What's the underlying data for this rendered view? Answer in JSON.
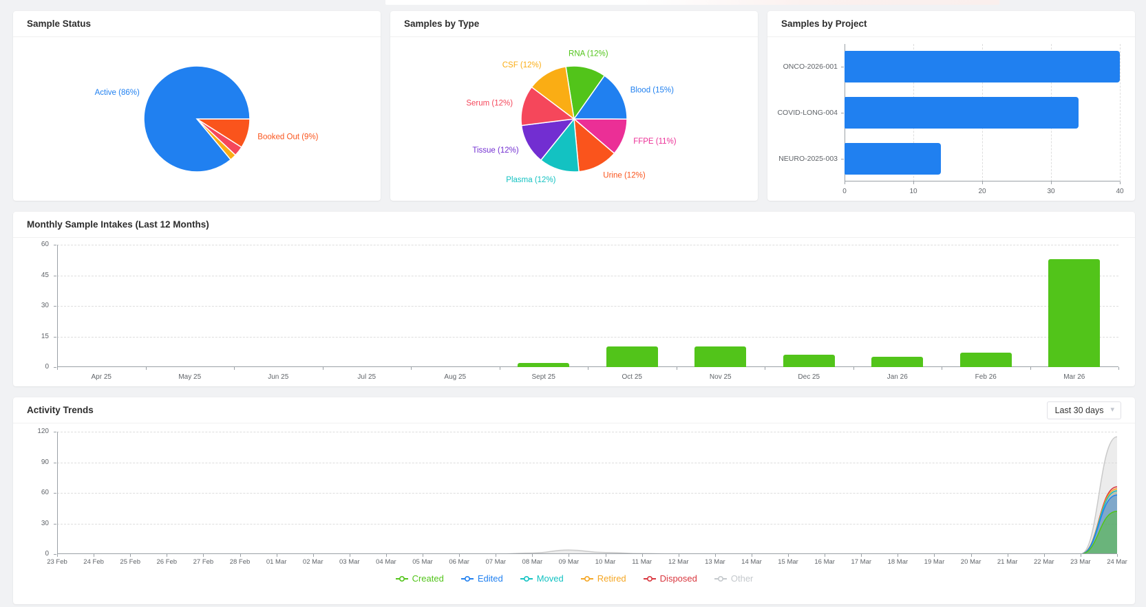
{
  "cards": {
    "sample_status": {
      "title": "Sample Status"
    },
    "samples_by_type": {
      "title": "Samples by Type"
    },
    "samples_by_project": {
      "title": "Samples by Project"
    },
    "monthly_intakes": {
      "title": "Monthly Sample Intakes (Last 12 Months)"
    },
    "activity_trends": {
      "title": "Activity Trends",
      "range_value": "Last 30 days"
    }
  },
  "chart_data": [
    {
      "id": "sample_status",
      "type": "pie",
      "title": "Sample Status",
      "start_angle_deg": 90,
      "slices": [
        {
          "label": "Booked Out",
          "value": 9,
          "color": "#fa541c",
          "label_text": "Booked Out (9%)"
        },
        {
          "label": "",
          "value": 3,
          "color": "#f5475b",
          "label_text": ""
        },
        {
          "label": "",
          "value": 2,
          "color": "#faad14",
          "label_text": ""
        },
        {
          "label": "Active",
          "value": 86,
          "color": "#2080f0",
          "label_text": "Active (86%)"
        }
      ]
    },
    {
      "id": "samples_by_type",
      "type": "pie",
      "title": "Samples by Type",
      "start_angle_deg": -9,
      "slices": [
        {
          "label": "RNA",
          "value": 12,
          "color": "#52c41a",
          "label_text": "RNA (12%)"
        },
        {
          "label": "Blood",
          "value": 15,
          "color": "#2080f0",
          "label_text": "Blood (15%)"
        },
        {
          "label": "FFPE",
          "value": 11,
          "color": "#eb2f96",
          "label_text": "FFPE (11%)"
        },
        {
          "label": "Urine",
          "value": 12,
          "color": "#fa541c",
          "label_text": "Urine (12%)"
        },
        {
          "label": "Plasma",
          "value": 12,
          "color": "#13c2c2",
          "label_text": "Plasma (12%)"
        },
        {
          "label": "Tissue",
          "value": 12,
          "color": "#722ed1",
          "label_text": "Tissue (12%)"
        },
        {
          "label": "Serum",
          "value": 12,
          "color": "#f5475b",
          "label_text": "Serum (12%)"
        },
        {
          "label": "CSF",
          "value": 12,
          "color": "#faad14",
          "label_text": "CSF (12%)"
        }
      ]
    },
    {
      "id": "samples_by_project",
      "type": "bar_horizontal",
      "title": "Samples by Project",
      "categories": [
        "ONCO-2026-001",
        "COVID-LONG-004",
        "NEURO-2025-003"
      ],
      "values": [
        40,
        34,
        14
      ],
      "xticks": [
        0,
        10,
        20,
        30,
        40
      ],
      "xmax": 40,
      "bar_color": "#2080f0"
    },
    {
      "id": "monthly_intakes",
      "type": "bar",
      "title": "Monthly Sample Intakes (Last 12 Months)",
      "categories": [
        "Apr 25",
        "May 25",
        "Jun 25",
        "Jul 25",
        "Aug 25",
        "Sept 25",
        "Oct 25",
        "Nov 25",
        "Dec 25",
        "Jan 26",
        "Feb 26",
        "Mar 26"
      ],
      "values": [
        0,
        0,
        0,
        0,
        0,
        2,
        10,
        10,
        6,
        5,
        7,
        53
      ],
      "yticks": [
        0,
        15,
        30,
        45,
        60
      ],
      "ymax": 60,
      "bar_color": "#52c41a"
    },
    {
      "id": "activity_trends",
      "type": "area_line",
      "title": "Activity Trends",
      "x": [
        "23 Feb",
        "24 Feb",
        "25 Feb",
        "26 Feb",
        "27 Feb",
        "28 Feb",
        "01 Mar",
        "02 Mar",
        "03 Mar",
        "04 Mar",
        "05 Mar",
        "06 Mar",
        "07 Mar",
        "08 Mar",
        "09 Mar",
        "10 Mar",
        "11 Mar",
        "12 Mar",
        "13 Mar",
        "14 Mar",
        "15 Mar",
        "16 Mar",
        "17 Mar",
        "18 Mar",
        "19 Mar",
        "20 Mar",
        "21 Mar",
        "22 Mar",
        "23 Mar",
        "24 Mar"
      ],
      "yticks": [
        0,
        30,
        60,
        90,
        120
      ],
      "ymax": 120,
      "series": [
        {
          "name": "Other",
          "color": "#c9c9c9",
          "fill": "#d9d9d9",
          "fill_opacity": 0.5,
          "values": [
            0,
            0,
            0,
            0,
            0,
            0,
            0,
            0,
            0,
            0,
            0,
            0,
            0,
            1,
            4,
            1.5,
            0.5,
            0,
            0,
            0,
            0,
            0,
            0,
            0,
            0,
            0,
            0,
            0,
            0,
            115
          ]
        },
        {
          "name": "Disposed",
          "color": "#d9363e",
          "fill": "#d9363e",
          "fill_opacity": 0.18,
          "values": [
            0,
            0,
            0,
            0,
            0,
            0,
            0,
            0,
            0,
            0,
            0,
            0,
            0,
            0,
            0,
            0,
            0,
            0,
            0,
            0,
            0,
            0,
            0,
            0,
            0,
            0,
            0,
            0,
            0,
            66
          ]
        },
        {
          "name": "Retired",
          "color": "#f5a623",
          "fill": "#f5a623",
          "fill_opacity": 0.18,
          "values": [
            0,
            0,
            0,
            0,
            0,
            0,
            0,
            0,
            0,
            0,
            0,
            0,
            0,
            0,
            0,
            0,
            0,
            0,
            0,
            0,
            0,
            0,
            0,
            0,
            0,
            0,
            0,
            0,
            0,
            64
          ]
        },
        {
          "name": "Moved",
          "color": "#13c2c2",
          "fill": "#13c2c2",
          "fill_opacity": 0.2,
          "values": [
            0,
            0,
            0,
            0,
            0,
            0,
            0,
            0,
            0,
            0,
            0,
            0,
            0,
            0,
            0,
            0,
            0,
            0,
            0,
            0,
            0,
            0,
            0,
            0,
            0,
            0,
            0,
            0,
            0,
            62
          ]
        },
        {
          "name": "Edited",
          "color": "#2080f0",
          "fill": "#2080f0",
          "fill_opacity": 0.4,
          "values": [
            0,
            0,
            0,
            0,
            0,
            0,
            0,
            0,
            0,
            0,
            0,
            0,
            0,
            0,
            0,
            0,
            0,
            0,
            0,
            0,
            0,
            0,
            0,
            0,
            0,
            0,
            0,
            0,
            0,
            58
          ]
        },
        {
          "name": "Created",
          "color": "#52c41a",
          "fill": "#52c41a",
          "fill_opacity": 0.45,
          "values": [
            0,
            0,
            0,
            0,
            0,
            0,
            0,
            0,
            0,
            0,
            0,
            0,
            0,
            0,
            0,
            0,
            0,
            0,
            0,
            0,
            0,
            0,
            0,
            0,
            0,
            0,
            0,
            0,
            0,
            42
          ]
        }
      ],
      "legend": [
        {
          "label": "Created",
          "color": "#52c41a",
          "dimmed": false
        },
        {
          "label": "Edited",
          "color": "#2080f0",
          "dimmed": false
        },
        {
          "label": "Moved",
          "color": "#13c2c2",
          "dimmed": false
        },
        {
          "label": "Retired",
          "color": "#f5a623",
          "dimmed": false
        },
        {
          "label": "Disposed",
          "color": "#d9363e",
          "dimmed": false
        },
        {
          "label": "Other",
          "color": "#c4c8cc",
          "dimmed": true
        }
      ],
      "legend_position": "bottom-center",
      "grid": true
    }
  ]
}
